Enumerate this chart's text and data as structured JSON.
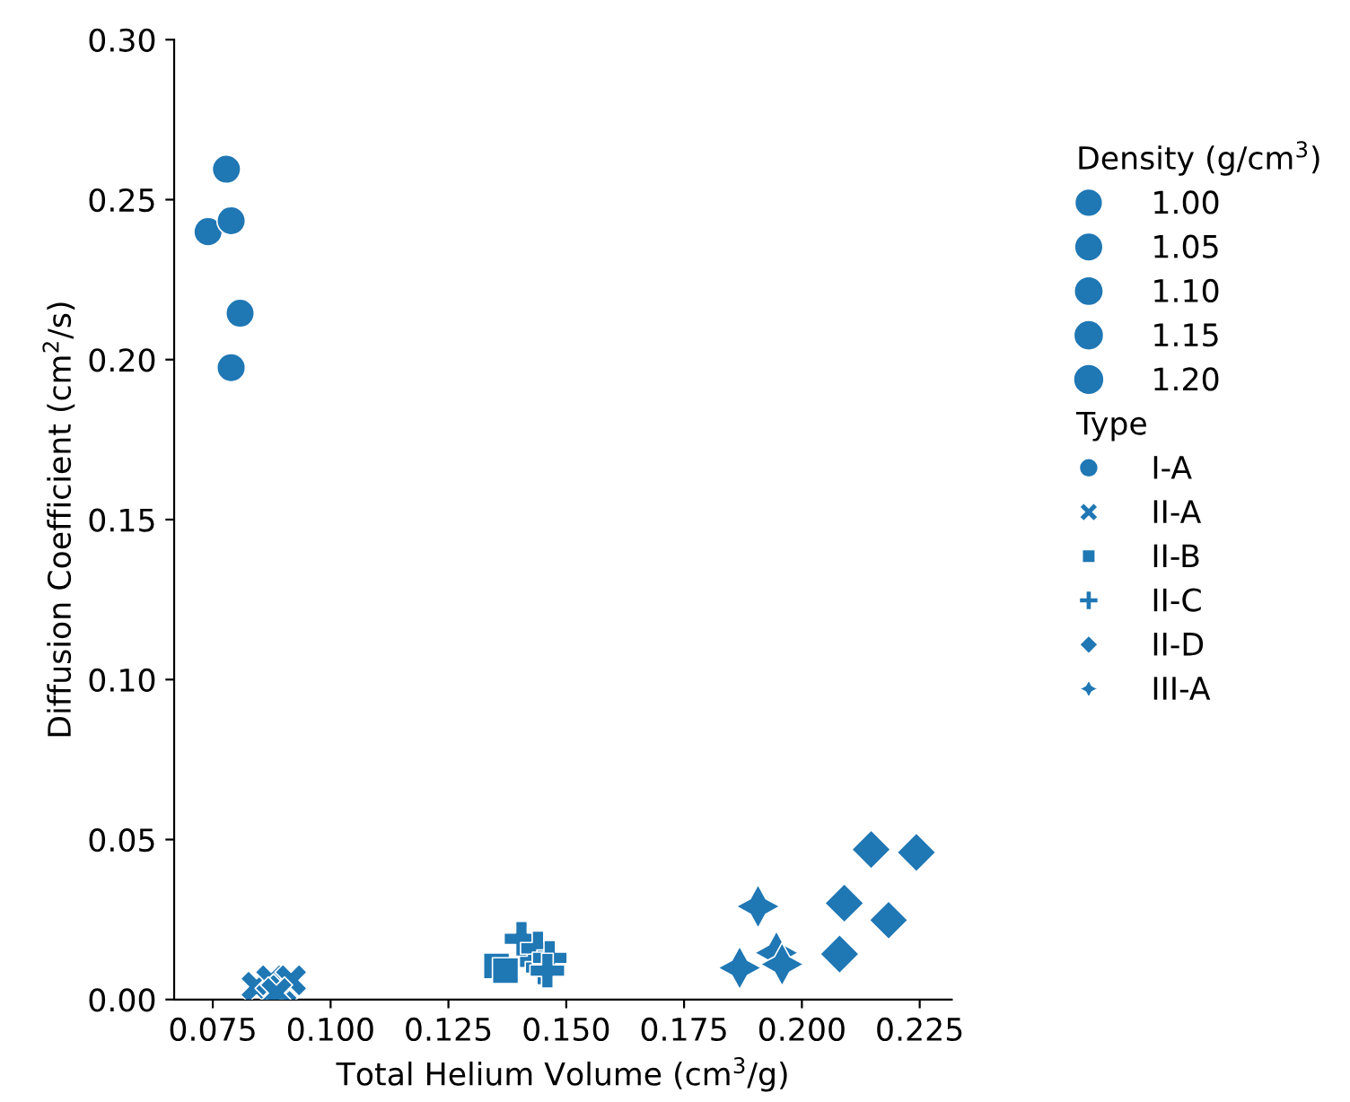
{
  "chart_data": {
    "type": "bubble",
    "xlabel": "Total Helium Volume (cm$^{3}$/g)",
    "ylabel": "Diffusion Coefficient (cm$^{2}$/s)",
    "legend_title": [
      "Density (g/cm$^{3}$)",
      "Type"
    ],
    "size_legend": [
      {
        "value": 1.0,
        "label": "1.00"
      },
      {
        "value": 1.05,
        "label": "1.05"
      },
      {
        "value": 1.1,
        "label": "1.10"
      },
      {
        "value": 1.15,
        "label": "1.15"
      },
      {
        "value": 1.2,
        "label": "1.20"
      }
    ],
    "legend": "right",
    "grid": false,
    "xlim": [
      0.0668,
      0.2318
    ],
    "ylim": [
      0,
      0.3
    ],
    "xticks": [
      {
        "value": 0.075,
        "label": "0.075"
      },
      {
        "value": 0.1,
        "label": "0.100"
      },
      {
        "value": 0.125,
        "label": "0.125"
      },
      {
        "value": 0.15,
        "label": "0.150"
      },
      {
        "value": 0.175,
        "label": "0.175"
      },
      {
        "value": 0.2,
        "label": "0.200"
      },
      {
        "value": 0.225,
        "label": "0.225"
      }
    ],
    "yticks": [
      {
        "value": 0,
        "label": "0.00"
      },
      {
        "value": 0.05,
        "label": "0.05"
      },
      {
        "value": 0.1,
        "label": "0.10"
      },
      {
        "value": 0.15,
        "label": "0.15"
      },
      {
        "value": 0.2,
        "label": "0.20"
      },
      {
        "value": 0.25,
        "label": "0.25"
      },
      {
        "value": 0.3,
        "label": "0.30"
      }
    ],
    "series": [
      {
        "name": "I-A",
        "marker": "circle",
        "color": "#1f77b4",
        "x": [
          0.0779,
          0.074,
          0.0789,
          0.0808,
          0.0789
        ],
        "values": [
          0.2595,
          0.24,
          0.2434,
          0.2145,
          0.1975
        ],
        "sizes": [
          0.976,
          0.98,
          0.976,
          0.975,
          0.976
        ]
      },
      {
        "name": "II-A",
        "marker": "cross",
        "color": "#1f77b4",
        "x": [
          0.0843,
          0.0874,
          0.0896,
          0.0916,
          0.0885
        ],
        "values": [
          0.004,
          0.006,
          0.003,
          0.006,
          0.002
        ],
        "sizes": [
          1.0,
          1.0,
          1.0,
          1.0,
          1.0
        ]
      },
      {
        "name": "II-B",
        "marker": "square",
        "color": "#1f77b4",
        "x": [
          0.1352,
          0.1371,
          0.1428
        ],
        "values": [
          0.0105,
          0.009,
          0.014
        ],
        "sizes": [
          1.04,
          1.04,
          1.04
        ]
      },
      {
        "name": "II-C",
        "marker": "plus",
        "color": "#1f77b4",
        "x": [
          0.1405,
          0.144,
          0.145,
          0.1465,
          0.146
        ],
        "values": [
          0.019,
          0.016,
          0.01,
          0.013,
          0.009
        ],
        "sizes": [
          1.04,
          1.04,
          1.04,
          1.04,
          1.04
        ]
      },
      {
        "name": "II-D",
        "marker": "diamond",
        "color": "#1f77b4",
        "x": [
          0.2147,
          0.2243,
          0.209,
          0.2184,
          0.208
        ],
        "values": [
          0.0469,
          0.046,
          0.0301,
          0.0248,
          0.0142
        ],
        "sizes": [
          1.17,
          1.17,
          1.17,
          1.15,
          1.17
        ]
      },
      {
        "name": "III-A",
        "marker": "star",
        "color": "#1f77b4",
        "x": [
          0.1907,
          0.1868,
          0.1946,
          0.1958
        ],
        "values": [
          0.0291,
          0.0099,
          0.0146,
          0.011
        ],
        "sizes": [
          1.04,
          1.03,
          1.04,
          1.02
        ]
      }
    ]
  }
}
